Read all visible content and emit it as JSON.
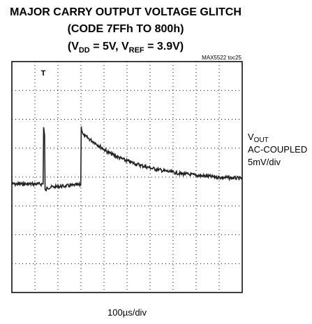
{
  "chart_data": {
    "type": "scope",
    "title": "MAJOR CARRY OUTPUT VOLTAGE GLITCH",
    "subtitle": "(CODE 7FFh TO 800h)",
    "conditions": [
      "(V",
      "DD",
      " = 5V, V",
      "REF",
      " = 3.9V)"
    ],
    "note": "MAX5522 toc25",
    "trace_label": [
      "V",
      "OUT",
      "AC-COUPLED",
      "5mV/div"
    ],
    "x_label": "100µs/div",
    "trigger": "T"
  }
}
